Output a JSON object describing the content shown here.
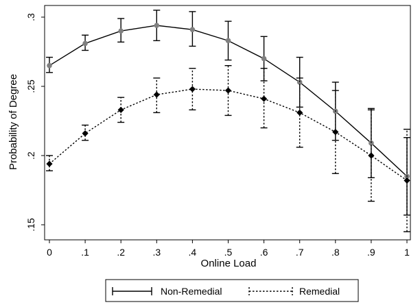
{
  "chart_data": {
    "type": "line",
    "xlabel": "Online Load",
    "ylabel": "Probability of Degree",
    "xlim": [
      0,
      1
    ],
    "ylim": [
      0.148,
      0.305
    ],
    "x": [
      0,
      0.1,
      0.2,
      0.3,
      0.4,
      0.5,
      0.6,
      0.7,
      0.8,
      0.9,
      1
    ],
    "x_tick_labels": [
      "0",
      ".1",
      ".2",
      ".3",
      ".4",
      ".5",
      ".6",
      ".7",
      ".8",
      ".9",
      "1"
    ],
    "y_ticks": [
      0.15,
      0.2,
      0.25,
      0.3
    ],
    "y_tick_labels": [
      ".15",
      ".2",
      ".25",
      ".3"
    ],
    "grid": false,
    "legend_position": "bottom",
    "series": [
      {
        "name": "Non-Remedial",
        "line_style": "solid",
        "marker": "circle",
        "marker_color": "#808080",
        "line_color": "#000000",
        "values": [
          0.265,
          0.281,
          0.29,
          0.294,
          0.291,
          0.283,
          0.27,
          0.253,
          0.232,
          0.209,
          0.185
        ],
        "lower": [
          0.26,
          0.276,
          0.282,
          0.283,
          0.279,
          0.269,
          0.254,
          0.235,
          0.211,
          0.184,
          0.157
        ],
        "upper": [
          0.271,
          0.287,
          0.299,
          0.305,
          0.304,
          0.297,
          0.286,
          0.271,
          0.253,
          0.234,
          0.213
        ]
      },
      {
        "name": "Remedial",
        "line_style": "dotted",
        "marker": "diamond",
        "marker_color": "#000000",
        "line_color": "#000000",
        "values": [
          0.194,
          0.216,
          0.233,
          0.244,
          0.248,
          0.247,
          0.241,
          0.231,
          0.217,
          0.2,
          0.182
        ],
        "lower": [
          0.189,
          0.211,
          0.224,
          0.231,
          0.233,
          0.229,
          0.22,
          0.206,
          0.187,
          0.167,
          0.145
        ],
        "upper": [
          0.2,
          0.222,
          0.242,
          0.256,
          0.263,
          0.265,
          0.263,
          0.256,
          0.247,
          0.233,
          0.219
        ]
      }
    ]
  }
}
